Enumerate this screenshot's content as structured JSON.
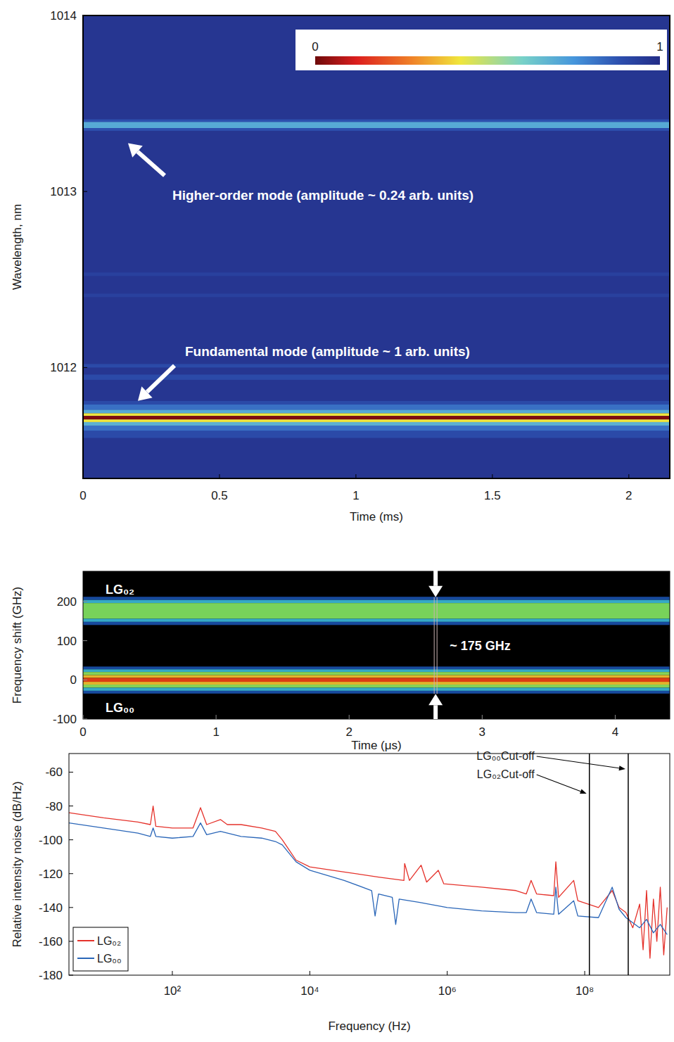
{
  "chart_data": [
    {
      "type": "heatmap",
      "x_label": "Time (ms)",
      "y_label": "Wavelength, nm",
      "xlim": [
        0,
        2.15
      ],
      "xticks": [
        0,
        0.5,
        1,
        1.5,
        2
      ],
      "ylim": [
        1011.37,
        1014
      ],
      "yticks": [
        1012,
        1013,
        1014
      ],
      "color_range": [
        0,
        1
      ],
      "color_ticks": [
        0,
        1
      ],
      "background_value": 0.97,
      "cells": [
        {
          "y0": 1013.395,
          "y1": 1013.41,
          "value": 0.88
        },
        {
          "y0": 1013.36,
          "y1": 1013.395,
          "value": 0.7
        },
        {
          "y0": 1013.345,
          "y1": 1013.36,
          "value": 0.88
        },
        {
          "y0": 1012.52,
          "y1": 1012.54,
          "value": 0.93
        },
        {
          "y0": 1012.4,
          "y1": 1012.42,
          "value": 0.93
        },
        {
          "y0": 1012.0,
          "y1": 1012.02,
          "value": 0.9
        },
        {
          "y0": 1011.93,
          "y1": 1011.96,
          "value": 0.9
        },
        {
          "y0": 1011.79,
          "y1": 1011.81,
          "value": 0.9
        },
        {
          "y0": 1011.76,
          "y1": 1011.79,
          "value": 0.82
        },
        {
          "y0": 1011.74,
          "y1": 1011.76,
          "value": 0.7
        },
        {
          "y0": 1011.725,
          "y1": 1011.74,
          "value": 0.42
        },
        {
          "y0": 1011.705,
          "y1": 1011.725,
          "value": 0.02
        },
        {
          "y0": 1011.69,
          "y1": 1011.705,
          "value": 0.42
        },
        {
          "y0": 1011.67,
          "y1": 1011.69,
          "value": 0.68
        },
        {
          "y0": 1011.64,
          "y1": 1011.67,
          "value": 0.82
        },
        {
          "y0": 1011.6,
          "y1": 1011.64,
          "value": 0.9
        }
      ],
      "annotations": [
        {
          "text": "Higher-order mode (amplitude ~ 0.24 arb. units)",
          "y": 1013.37
        },
        {
          "text": "Fundamental mode (amplitude ~ 1 arb. units)",
          "y": 1011.715
        }
      ]
    },
    {
      "type": "heatmap",
      "x_label": "Time (μs)",
      "y_label": "Frequency shift (GHz)",
      "xlim": [
        0,
        4.41
      ],
      "xticks": [
        0,
        1,
        2,
        3,
        4
      ],
      "ylim": [
        -100,
        277
      ],
      "yticks": [
        -100,
        0,
        100,
        200
      ],
      "color_range": [
        0,
        1
      ],
      "background_value": 0,
      "cells": [
        {
          "y0": 204,
          "y1": 212,
          "value": 0.3
        },
        {
          "y0": 196,
          "y1": 204,
          "value": 0.45
        },
        {
          "y0": 156,
          "y1": 196,
          "value": 0.6
        },
        {
          "y0": 148,
          "y1": 156,
          "value": 0.45
        },
        {
          "y0": 140,
          "y1": 148,
          "value": 0.3
        },
        {
          "y0": 27,
          "y1": 34,
          "value": 0.3
        },
        {
          "y0": 20,
          "y1": 27,
          "value": 0.45
        },
        {
          "y0": 12,
          "y1": 20,
          "value": 0.62
        },
        {
          "y0": 5,
          "y1": 12,
          "value": 0.78
        },
        {
          "y0": -5,
          "y1": 5,
          "value": 0.9
        },
        {
          "y0": -12,
          "y1": -5,
          "value": 0.78
        },
        {
          "y0": -20,
          "y1": -12,
          "value": 0.62
        },
        {
          "y0": -28,
          "y1": -20,
          "value": 0.45
        },
        {
          "y0": -35,
          "y1": -28,
          "value": 0.3
        }
      ],
      "mode_labels": [
        "LG₀₂",
        "LG₀₀"
      ],
      "annotations": [
        {
          "text": "~ 175 GHz",
          "x": 2.65,
          "y": [
            0,
            175
          ]
        }
      ]
    },
    {
      "type": "line",
      "x_label": "Frequency (Hz)",
      "y_label": "Relative intensity noise (dB/Hz)",
      "log": "x",
      "xlim": [
        3.13,
        1730000000.0
      ],
      "xticks": [
        {
          "value": 100,
          "label": "10²"
        },
        {
          "value": 10000,
          "label": "10⁴"
        },
        {
          "value": 1000000,
          "label": "10⁶"
        },
        {
          "value": 100000000,
          "label": "10⁸"
        }
      ],
      "ylim": [
        -180,
        -49
      ],
      "yticks": [
        -180,
        -160,
        -140,
        -120,
        -100,
        -80,
        -60
      ],
      "legend": "lower left",
      "series": [
        {
          "name": "LG₀₂",
          "color": "#e5322b",
          "x": [
            3.13,
            10,
            31.6,
            47.9,
            52.5,
            57.5,
            100,
            200,
            257,
            316,
            501,
            631,
            1000,
            1995,
            3162,
            3981,
            5012,
            6310,
            10000,
            31623,
            100000,
            234400,
            239900,
            281800,
            416900,
            501200,
            741300,
            891300,
            3162000,
            10000000,
            14130000,
            16600000,
            19950000,
            35480000,
            38020000,
            41690000,
            69180000,
            79430000,
            158500000,
            251200000,
            316200000,
            398100000,
            501200000,
            631000000,
            707900000,
            794300000,
            891300000,
            1000000000,
            1122000000,
            1259000000,
            1413000000,
            1585000000
          ],
          "values": [
            -84,
            -87,
            -89.5,
            -91,
            -80,
            -92,
            -93,
            -93,
            -81,
            -91,
            -88,
            -91,
            -91,
            -93,
            -95,
            -100,
            -106,
            -112,
            -116,
            -119,
            -122,
            -124,
            -114,
            -124,
            -115,
            -125,
            -118,
            -126,
            -128,
            -130,
            -132,
            -124,
            -132,
            -133,
            -113,
            -134,
            -124,
            -136,
            -140,
            -130,
            -140,
            -143,
            -152,
            -138,
            -165,
            -130,
            -170,
            -135,
            -160,
            -128,
            -168,
            -140
          ]
        },
        {
          "name": "LG₀₀",
          "color": "#2a66b8",
          "x": [
            3.13,
            10,
            31.6,
            47.9,
            52.5,
            57.5,
            100,
            200,
            257,
            316,
            501,
            1000,
            1995,
            3162,
            3981,
            5012,
            6310,
            10000,
            31623,
            79430,
            89130,
            100000,
            158500,
            177800,
            199500,
            398100,
            1000000,
            3162000,
            10000000,
            14130000,
            16600000,
            19950000,
            35480000,
            38020000,
            41690000,
            69180000,
            79430000,
            158500000,
            251200000,
            316200000,
            398100000,
            631000000,
            794300000,
            1000000000,
            1259000000,
            1585000000
          ],
          "values": [
            -90,
            -93,
            -96,
            -98,
            -93,
            -98,
            -99,
            -98,
            -90,
            -97,
            -95,
            -98,
            -99,
            -101,
            -103,
            -108,
            -113,
            -118,
            -124,
            -130,
            -145,
            -132,
            -134,
            -150,
            -135,
            -137,
            -140,
            -142,
            -143,
            -143,
            -135,
            -143,
            -144,
            -128,
            -144,
            -136,
            -145,
            -146,
            -128,
            -141,
            -146,
            -152,
            -147,
            -155,
            -150,
            -156
          ]
        }
      ],
      "cutoffs": [
        {
          "label": "LG₀₀Cut-off",
          "x": 430000000
        },
        {
          "label": "LG₀₂Cut-off",
          "x": 117000000
        }
      ]
    }
  ]
}
